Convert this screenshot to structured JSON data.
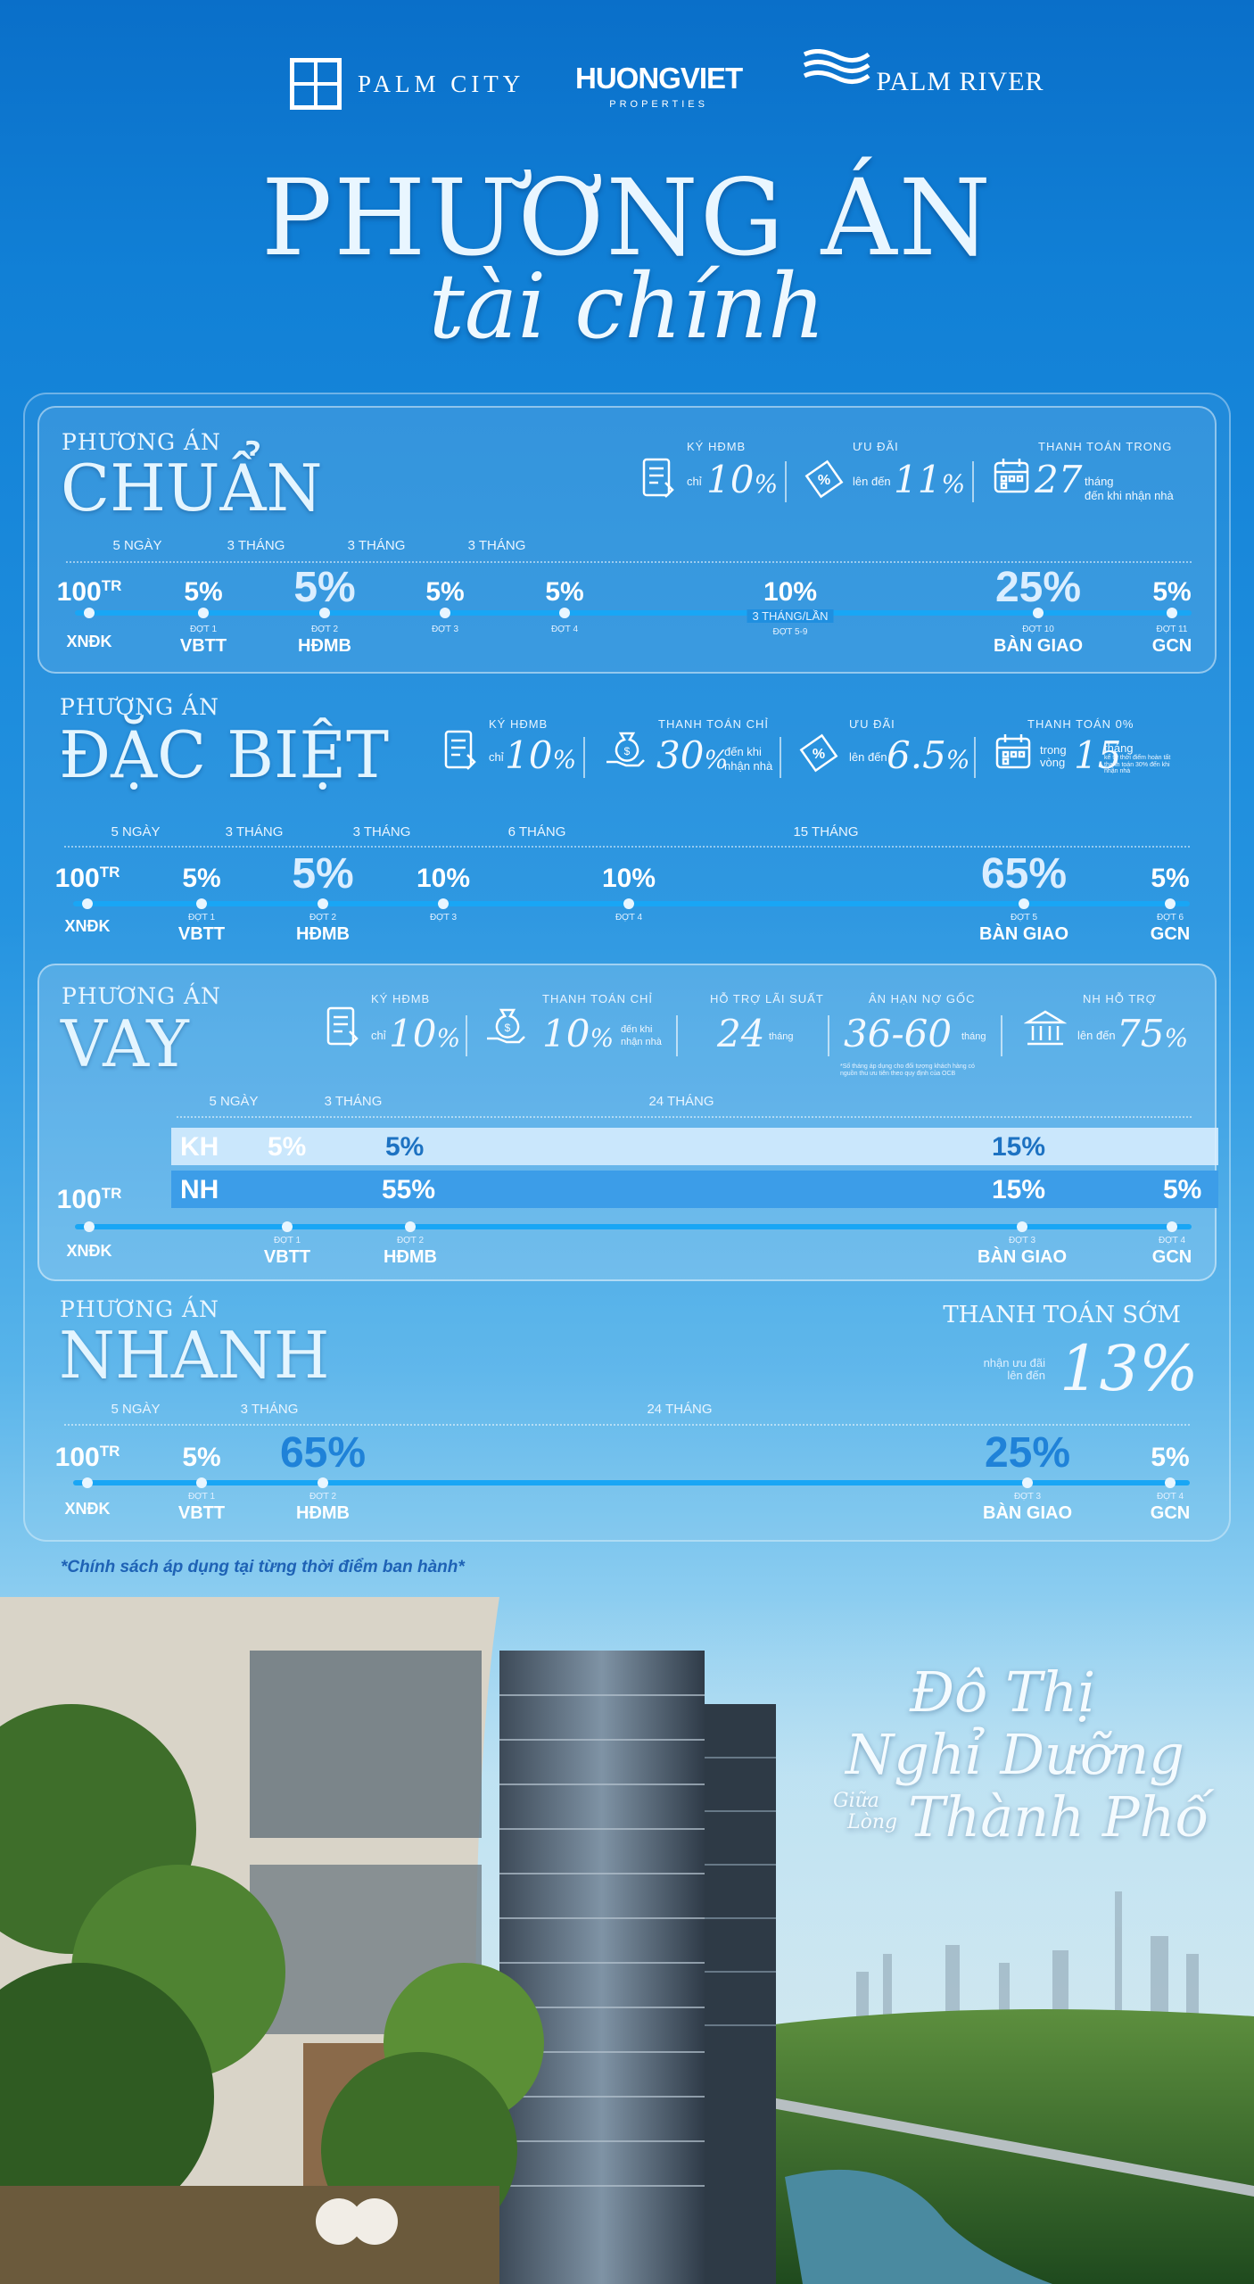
{
  "logos": {
    "palm_city": "PALM CITY",
    "huong_viet": "HUONGVIET",
    "huong_viet_sub": "PROPERTIES",
    "palm_river": "PALM RIVER"
  },
  "title": {
    "line1": "PHƯƠNG ÁN",
    "line2": "tài chính"
  },
  "common": {
    "prefix": "PHƯƠNG ÁN",
    "xndk": "XNĐK",
    "tr": "TR",
    "hundred": "100"
  },
  "chuan": {
    "name": "CHUẨN",
    "info": [
      {
        "head": "KÝ HĐMB",
        "pre": "chỉ",
        "value": "10",
        "unit": "%",
        "icon": "contract-icon"
      },
      {
        "head": "ƯU ĐÃI",
        "pre": "lên đến",
        "value": "11",
        "unit": "%",
        "icon": "discount-tag-icon"
      },
      {
        "head": "THANH TOÁN TRONG",
        "pre": "",
        "value": "27",
        "unit": "",
        "post": "tháng",
        "post2": "đến khi nhận nhà",
        "icon": "calendar-icon"
      }
    ],
    "intervals": [
      "5 NGÀY",
      "3 THÁNG",
      "3 THÁNG",
      "3 THÁNG"
    ],
    "steps": [
      {
        "val": "5%",
        "dot": "ĐỢT 1",
        "label": "VBTT"
      },
      {
        "val": "5%",
        "dot": "ĐỢT 2",
        "label": "HĐMB"
      },
      {
        "val": "5%",
        "dot": "ĐỢT 3",
        "label": ""
      },
      {
        "val": "5%",
        "dot": "ĐỢT 4",
        "label": ""
      },
      {
        "val": "10%",
        "sub": "3 THÁNG/LẦN",
        "dot": "ĐỢT 5-9",
        "label": ""
      },
      {
        "val": "25%",
        "dot": "ĐỢT 10",
        "label": "BÀN GIAO"
      },
      {
        "val": "5%",
        "dot": "ĐỢT 11",
        "label": "GCN"
      }
    ]
  },
  "dacbiet": {
    "name": "ĐẶC BIỆT",
    "info": [
      {
        "head": "KÝ HĐMB",
        "pre": "chỉ",
        "value": "10",
        "unit": "%",
        "icon": "contract-icon"
      },
      {
        "head": "THANH TOÁN CHỈ",
        "pre": "",
        "value": "30",
        "unit": "%",
        "post": "đến khi",
        "post2": "nhận nhà",
        "icon": "money-bag-hand-icon"
      },
      {
        "head": "ƯU ĐÃI",
        "pre": "lên đến",
        "value": "6.5",
        "unit": "%",
        "icon": "discount-tag-icon"
      },
      {
        "head": "THANH TOÁN 0%",
        "pre": "trong vòng",
        "value": "15",
        "unit": "",
        "post": "tháng",
        "post2": "kể từ thời điểm hoàn tất thanh toán 30% đến khi nhận nhà",
        "icon": "calendar-icon"
      }
    ],
    "intervals": [
      "5 NGÀY",
      "3 THÁNG",
      "3 THÁNG",
      "6 THÁNG",
      "15 THÁNG"
    ],
    "steps": [
      {
        "val": "5%",
        "dot": "ĐỢT 1",
        "label": "VBTT"
      },
      {
        "val": "5%",
        "dot": "ĐỢT 2",
        "label": "HĐMB"
      },
      {
        "val": "10%",
        "dot": "ĐỢT 3",
        "label": ""
      },
      {
        "val": "10%",
        "dot": "ĐỢT 4",
        "label": ""
      },
      {
        "val": "65%",
        "dot": "ĐỢT 5",
        "label": "BÀN GIAO"
      },
      {
        "val": "5%",
        "dot": "ĐỢT 6",
        "label": "GCN"
      }
    ]
  },
  "vay": {
    "name": "VAY",
    "info": [
      {
        "head": "KÝ HĐMB",
        "pre": "chỉ",
        "value": "10",
        "unit": "%",
        "icon": "contract-icon"
      },
      {
        "head": "THANH TOÁN CHỈ",
        "pre": "",
        "value": "10",
        "unit": "%",
        "post": "đến khi",
        "post2": "nhận nhà",
        "icon": "money-bag-hand-icon"
      },
      {
        "head": "HỖ TRỢ LÃI SUẤT",
        "value": "24",
        "post": "tháng"
      },
      {
        "head": "ÂN HẠN NỢ GỐC",
        "value": "36-60",
        "post": "tháng",
        "note": "*Số tháng áp dụng cho đối tượng khách hàng có nguồn thu ưu tiên theo quy định của OCB"
      },
      {
        "head": "NH HỖ TRỢ",
        "pre": "lên đến",
        "value": "75",
        "unit": "%",
        "icon": "bank-icon"
      }
    ],
    "intervals": [
      "5 NGÀY",
      "3 THÁNG",
      "24 THÁNG"
    ],
    "kh": {
      "label": "KH",
      "values": [
        "5%",
        "5%",
        "15%"
      ]
    },
    "nh": {
      "label": "NH",
      "values": [
        "55%",
        "15%",
        "5%"
      ]
    },
    "steps": [
      {
        "dot": "ĐỢT 1",
        "label": "VBTT"
      },
      {
        "dot": "ĐỢT 2",
        "label": "HĐMB"
      },
      {
        "dot": "ĐỢT 3",
        "label": "BÀN GIAO"
      },
      {
        "dot": "ĐỢT 4",
        "label": "GCN"
      }
    ]
  },
  "nhanh": {
    "name": "NHANH",
    "early": "THANH TOÁN SỚM",
    "early_pre": "nhận ưu đãi lên đến",
    "early_value": "13%",
    "intervals": [
      "5 NGÀY",
      "3 THÁNG",
      "24 THÁNG"
    ],
    "steps": [
      {
        "val": "5%",
        "dot": "ĐỢT 1",
        "label": "VBTT"
      },
      {
        "val": "65%",
        "dot": "ĐỢT 2",
        "label": "HĐMB"
      },
      {
        "val": "25%",
        "dot": "ĐỢT 3",
        "label": "BÀN GIAO"
      },
      {
        "val": "5%",
        "dot": "ĐỢT 4",
        "label": "GCN"
      }
    ]
  },
  "note": "*Chính sách áp dụng tại từng thời điểm ban hành*",
  "slogan": {
    "l1": "Đô Thị",
    "l2": "Nghỉ Dưỡng",
    "l3a": "Giữa",
    "l3b": "Lòng",
    "l3": "Thành Phố"
  }
}
